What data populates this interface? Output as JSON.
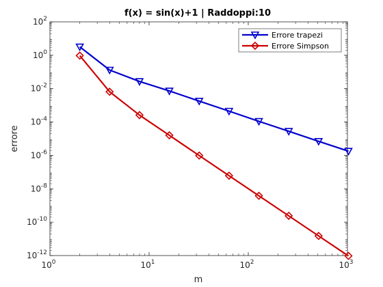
{
  "chart_data": {
    "type": "line",
    "title": "f(x) = sin(x)+1 | Raddoppi:10",
    "xlabel": "m",
    "ylabel": "errore",
    "xscale": "log",
    "yscale": "log",
    "xlim": [
      1,
      1000
    ],
    "ylim": [
      1e-12,
      100
    ],
    "x_ticks": [
      {
        "value": 1,
        "base": "10",
        "exp": "0"
      },
      {
        "value": 10,
        "base": "10",
        "exp": "1"
      },
      {
        "value": 100,
        "base": "10",
        "exp": "2"
      },
      {
        "value": 1000,
        "base": "10",
        "exp": "3"
      }
    ],
    "y_ticks": [
      {
        "value": 1e-12,
        "base": "10",
        "exp": "-12"
      },
      {
        "value": 1e-10,
        "base": "10",
        "exp": "-10"
      },
      {
        "value": 1e-08,
        "base": "10",
        "exp": "-8"
      },
      {
        "value": 1e-06,
        "base": "10",
        "exp": "-6"
      },
      {
        "value": 0.0001,
        "base": "10",
        "exp": "-4"
      },
      {
        "value": 0.01,
        "base": "10",
        "exp": "-2"
      },
      {
        "value": 1,
        "base": "10",
        "exp": "0"
      },
      {
        "value": 100,
        "base": "10",
        "exp": "2"
      }
    ],
    "grid": false,
    "legend_position": "top-right",
    "series": [
      {
        "name": "Errore trapezi",
        "color": "#0000cc",
        "marker": "triangle-down",
        "x": [
          2,
          4,
          8,
          16,
          32,
          64,
          128,
          256,
          512,
          1024
        ],
        "y": [
          3.2,
          0.13,
          0.027,
          0.0073,
          0.0018,
          0.00045,
          0.00011,
          2.8e-05,
          7e-06,
          1.8e-06
        ]
      },
      {
        "name": "Errore Simpson",
        "color": "#cc0000",
        "marker": "diamond",
        "x": [
          2,
          4,
          8,
          16,
          32,
          64,
          128,
          256,
          512,
          1024
        ],
        "y": [
          0.95,
          0.0065,
          0.00026,
          1.6e-05,
          9.8e-07,
          6.1e-08,
          3.8e-09,
          2.4e-10,
          1.5e-11,
          9.5e-13
        ]
      }
    ]
  }
}
